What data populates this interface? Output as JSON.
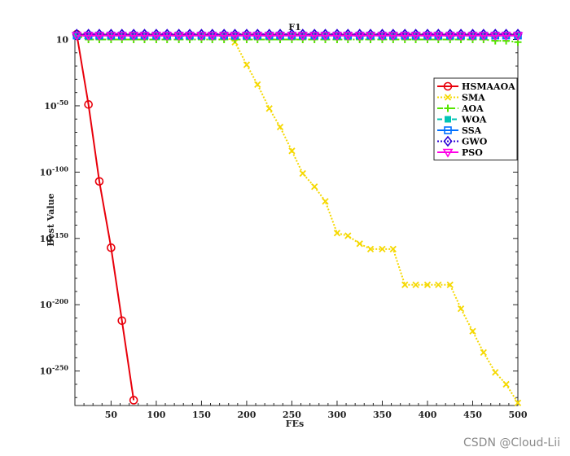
{
  "chart_data": {
    "type": "line",
    "title": "F1",
    "xlabel": "FEs",
    "ylabel": "Best Value",
    "xlim": [
      10,
      500
    ],
    "ylim_exponent": [
      -276,
      4
    ],
    "yscale": "log",
    "x_ticks": [
      "50",
      "100",
      "150",
      "200",
      "250",
      "300",
      "350",
      "400",
      "450",
      "500"
    ],
    "y_ticks": [
      {
        "value": 1,
        "base": "10",
        "exp": ""
      },
      {
        "value": 1e-50,
        "base": "10",
        "exp": "-50"
      },
      {
        "value": 1e-100,
        "base": "10",
        "exp": "-100"
      },
      {
        "value": 1e-150,
        "base": "10",
        "exp": "-150"
      },
      {
        "value": 1e-200,
        "base": "10",
        "exp": "-200"
      },
      {
        "value": 1e-250,
        "base": "10",
        "exp": "-250"
      }
    ],
    "legend_position": "top-right",
    "series": [
      {
        "name": "HSMAAOA",
        "color": "#e8000b",
        "marker": "circle",
        "dash": "solid",
        "x": [
          12,
          25,
          37,
          50,
          62,
          75
        ],
        "y_exp": [
          4,
          -49,
          -107,
          -157,
          -212,
          -272
        ]
      },
      {
        "name": "SMA",
        "color": "#f5d800",
        "marker": "x",
        "dash": "dotted",
        "x": [
          12,
          25,
          37,
          50,
          62,
          75,
          87,
          100,
          112,
          125,
          137,
          150,
          162,
          175,
          187,
          200,
          212,
          225,
          237,
          250,
          262,
          275,
          287,
          300,
          312,
          325,
          337,
          350,
          362,
          375,
          387,
          400,
          412,
          425,
          437,
          450,
          462,
          475,
          487,
          500
        ],
        "y_exp": [
          3,
          3,
          3,
          3,
          3,
          3,
          3,
          3,
          3,
          3,
          3,
          3,
          3,
          3,
          -2,
          -19,
          -34,
          -52,
          -66,
          -84,
          -101,
          -111,
          -122,
          -146,
          -148,
          -154,
          -158,
          -158,
          -158,
          -185,
          -185,
          -185,
          -185,
          -185,
          -203,
          -220,
          -236,
          -251,
          -260,
          -274
        ]
      },
      {
        "name": "AOA",
        "color": "#55e600",
        "marker": "plus",
        "dash": "dashdot",
        "x": [
          12,
          25,
          37,
          50,
          62,
          75,
          87,
          100,
          112,
          125,
          137,
          150,
          162,
          175,
          187,
          200,
          212,
          225,
          237,
          250,
          262,
          275,
          287,
          300,
          312,
          325,
          337,
          350,
          362,
          375,
          387,
          400,
          412,
          425,
          437,
          450,
          462,
          475,
          487,
          500
        ],
        "y_exp": [
          3,
          0,
          0,
          0,
          0,
          0,
          0,
          0,
          0,
          0,
          0,
          0,
          0,
          0,
          0,
          0,
          0,
          0,
          0,
          0,
          0,
          0,
          0,
          0,
          0,
          0,
          0,
          0,
          0,
          0,
          0,
          0,
          0,
          0,
          0,
          0,
          0,
          -1,
          -1,
          -2
        ]
      },
      {
        "name": "WOA",
        "color": "#00c4b4",
        "marker": "square-filled",
        "dash": "dashed",
        "x": [
          12,
          25,
          37,
          50,
          62,
          75,
          87,
          100,
          112,
          125,
          137,
          150,
          162,
          175,
          187,
          200,
          212,
          225,
          237,
          250,
          262,
          275,
          287,
          300,
          312,
          325,
          337,
          350,
          362,
          375,
          387,
          400,
          412,
          425,
          437,
          450,
          462,
          475,
          487,
          500
        ],
        "y_exp": [
          3,
          3,
          3,
          3,
          3,
          3,
          3,
          3,
          3,
          3,
          3,
          3,
          3,
          3,
          3,
          3,
          3,
          3,
          3,
          3,
          3,
          3,
          3,
          3,
          3,
          3,
          3,
          3,
          3,
          3,
          3,
          3,
          3,
          3,
          3,
          3,
          3,
          3,
          3,
          3
        ]
      },
      {
        "name": "SSA",
        "color": "#0070ff",
        "marker": "square",
        "dash": "solid",
        "x": [
          12,
          25,
          37,
          50,
          62,
          75,
          87,
          100,
          112,
          125,
          137,
          150,
          162,
          175,
          187,
          200,
          212,
          225,
          237,
          250,
          262,
          275,
          287,
          300,
          312,
          325,
          337,
          350,
          362,
          375,
          387,
          400,
          412,
          425,
          437,
          450,
          462,
          475,
          487,
          500
        ],
        "y_exp": [
          3,
          3,
          3,
          3,
          3,
          3,
          3,
          3,
          3,
          3,
          3,
          3,
          3,
          3,
          3,
          3,
          3,
          3,
          3,
          3,
          3,
          3,
          3,
          3,
          3,
          3,
          3,
          3,
          3,
          3,
          3,
          3,
          3,
          3,
          3,
          3,
          3,
          3,
          3,
          3
        ]
      },
      {
        "name": "GWO",
        "color": "#2a00d6",
        "marker": "diamond",
        "dash": "dotted",
        "x": [
          12,
          25,
          37,
          50,
          62,
          75,
          87,
          100,
          112,
          125,
          137,
          150,
          162,
          175,
          187,
          200,
          212,
          225,
          237,
          250,
          262,
          275,
          287,
          300,
          312,
          325,
          337,
          350,
          362,
          375,
          387,
          400,
          412,
          425,
          437,
          450,
          462,
          475,
          487,
          500
        ],
        "y_exp": [
          4,
          4,
          4,
          4,
          4,
          4,
          4,
          4,
          4,
          4,
          4,
          4,
          4,
          4,
          4,
          4,
          4,
          4,
          4,
          4,
          4,
          4,
          4,
          4,
          4,
          4,
          4,
          4,
          4,
          4,
          4,
          4,
          4,
          4,
          4,
          4,
          4,
          4,
          4,
          4
        ]
      },
      {
        "name": "PSO",
        "color": "#ff00e6",
        "marker": "triangle-down",
        "dash": "solid",
        "x": [
          12,
          25,
          37,
          50,
          62,
          75,
          87,
          100,
          112,
          125,
          137,
          150,
          162,
          175,
          187,
          200,
          212,
          225,
          237,
          250,
          262,
          275,
          287,
          300,
          312,
          325,
          337,
          350,
          362,
          375,
          387,
          400,
          412,
          425,
          437,
          450,
          462,
          475,
          487,
          500
        ],
        "y_exp": [
          3,
          3,
          3,
          3,
          3,
          3,
          3,
          3,
          3,
          3,
          3,
          3,
          3,
          3,
          3,
          3,
          3,
          3,
          3,
          3,
          3,
          3,
          3,
          3,
          3,
          3,
          3,
          3,
          3,
          3,
          3,
          3,
          3,
          3,
          3,
          3,
          3,
          3,
          3,
          3
        ]
      }
    ]
  },
  "watermark": "CSDN @Cloud-Lii"
}
